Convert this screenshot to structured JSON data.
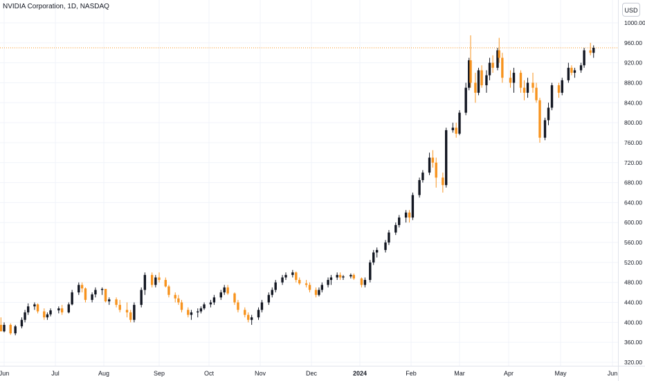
{
  "header": {
    "title": "NVIDIA Corporation, 1D, NASDAQ"
  },
  "currency_button": {
    "label": "USD"
  },
  "colors": {
    "up": "#131722",
    "down": "#f7931e",
    "grid": "#f0f3fa",
    "axis_text": "#131722",
    "price_line": "#f7931e"
  },
  "chart_data": {
    "type": "candlestick",
    "title": "NVIDIA Corporation, 1D, NASDAQ",
    "currency": "USD",
    "ylim": [
      320,
      1000
    ],
    "y_ticks": [
      320,
      360,
      400,
      440,
      480,
      520,
      560,
      600,
      640,
      680,
      720,
      760,
      800,
      840,
      880,
      920,
      960,
      1000
    ],
    "y_tick_labels": [
      "320.00",
      "360.00",
      "400.00",
      "440.00",
      "480.00",
      "520.00",
      "560.00",
      "600.00",
      "640.00",
      "680.00",
      "720.00",
      "760.00",
      "800.00",
      "840.00",
      "880.00",
      "920.00",
      "960.00",
      "1000.00"
    ],
    "x_ticks": [
      {
        "label": "Jun",
        "date": "2023-06-01"
      },
      {
        "label": "Jul",
        "date": "2023-07-03"
      },
      {
        "label": "Aug",
        "date": "2023-08-01"
      },
      {
        "label": "Sep",
        "date": "2023-09-01"
      },
      {
        "label": "Oct",
        "date": "2023-10-02"
      },
      {
        "label": "Nov",
        "date": "2023-11-01"
      },
      {
        "label": "Dec",
        "date": "2023-12-01"
      },
      {
        "label": "2024",
        "date": "2024-01-02"
      },
      {
        "label": "Feb",
        "date": "2024-02-01"
      },
      {
        "label": "Mar",
        "date": "2024-03-01"
      },
      {
        "label": "Apr",
        "date": "2024-04-01"
      },
      {
        "label": "May",
        "date": "2024-05-01"
      },
      {
        "label": "Jun",
        "date": "2024-06-03"
      }
    ],
    "grid": true,
    "last_price_line": 950,
    "bars": [
      [
        "2023-05-26",
        400,
        412,
        392,
        395
      ],
      [
        "2023-05-30",
        395,
        410,
        385,
        382
      ],
      [
        "2023-06-01",
        382,
        400,
        380,
        395
      ],
      [
        "2023-06-05",
        395,
        398,
        375,
        378
      ],
      [
        "2023-06-08",
        378,
        395,
        374,
        392
      ],
      [
        "2023-06-12",
        392,
        410,
        388,
        405
      ],
      [
        "2023-06-14",
        405,
        425,
        400,
        420
      ],
      [
        "2023-06-16",
        420,
        438,
        415,
        432
      ],
      [
        "2023-06-20",
        432,
        440,
        425,
        436
      ],
      [
        "2023-06-22",
        436,
        438,
        418,
        422
      ],
      [
        "2023-06-26",
        422,
        428,
        405,
        410
      ],
      [
        "2023-06-28",
        410,
        420,
        405,
        416
      ],
      [
        "2023-06-30",
        416,
        428,
        412,
        424
      ],
      [
        "2023-07-05",
        424,
        432,
        418,
        428
      ],
      [
        "2023-07-07",
        428,
        435,
        415,
        420
      ],
      [
        "2023-07-11",
        420,
        440,
        418,
        436
      ],
      [
        "2023-07-13",
        436,
        465,
        434,
        460
      ],
      [
        "2023-07-17",
        460,
        480,
        455,
        475
      ],
      [
        "2023-07-19",
        475,
        480,
        460,
        468
      ],
      [
        "2023-07-21",
        468,
        470,
        440,
        445
      ],
      [
        "2023-07-25",
        445,
        460,
        440,
        456
      ],
      [
        "2023-07-27",
        456,
        470,
        450,
        465
      ],
      [
        "2023-07-31",
        465,
        470,
        455,
        467
      ],
      [
        "2023-08-02",
        467,
        465,
        440,
        442
      ],
      [
        "2023-08-04",
        442,
        450,
        435,
        446
      ],
      [
        "2023-08-08",
        446,
        450,
        430,
        435
      ],
      [
        "2023-08-10",
        435,
        445,
        420,
        425
      ],
      [
        "2023-08-14",
        425,
        440,
        410,
        420
      ],
      [
        "2023-08-16",
        420,
        425,
        400,
        405
      ],
      [
        "2023-08-18",
        405,
        440,
        400,
        435
      ],
      [
        "2023-08-22",
        435,
        470,
        430,
        465
      ],
      [
        "2023-08-24",
        465,
        500,
        455,
        495
      ],
      [
        "2023-08-28",
        495,
        500,
        470,
        475
      ],
      [
        "2023-08-30",
        475,
        495,
        470,
        490
      ],
      [
        "2023-09-01",
        490,
        500,
        480,
        485
      ],
      [
        "2023-09-05",
        485,
        490,
        470,
        472
      ],
      [
        "2023-09-07",
        472,
        475,
        450,
        455
      ],
      [
        "2023-09-11",
        455,
        460,
        440,
        448
      ],
      [
        "2023-09-13",
        448,
        455,
        435,
        440
      ],
      [
        "2023-09-15",
        440,
        445,
        420,
        425
      ],
      [
        "2023-09-19",
        425,
        430,
        410,
        415
      ],
      [
        "2023-09-21",
        415,
        425,
        405,
        420
      ],
      [
        "2023-09-25",
        420,
        428,
        410,
        422
      ],
      [
        "2023-09-27",
        422,
        432,
        418,
        428
      ],
      [
        "2023-09-29",
        428,
        440,
        425,
        436
      ],
      [
        "2023-10-03",
        436,
        445,
        430,
        440
      ],
      [
        "2023-10-05",
        440,
        455,
        435,
        450
      ],
      [
        "2023-10-09",
        450,
        465,
        445,
        460
      ],
      [
        "2023-10-11",
        460,
        475,
        455,
        470
      ],
      [
        "2023-10-13",
        470,
        475,
        455,
        458
      ],
      [
        "2023-10-17",
        458,
        460,
        435,
        440
      ],
      [
        "2023-10-19",
        440,
        445,
        420,
        425
      ],
      [
        "2023-10-23",
        425,
        430,
        410,
        415
      ],
      [
        "2023-10-25",
        415,
        420,
        400,
        405
      ],
      [
        "2023-10-27",
        405,
        415,
        395,
        410
      ],
      [
        "2023-10-31",
        410,
        430,
        405,
        425
      ],
      [
        "2023-11-02",
        425,
        445,
        420,
        440
      ],
      [
        "2023-11-06",
        440,
        460,
        435,
        455
      ],
      [
        "2023-11-08",
        455,
        470,
        450,
        465
      ],
      [
        "2023-11-10",
        465,
        485,
        460,
        480
      ],
      [
        "2023-11-14",
        480,
        495,
        475,
        490
      ],
      [
        "2023-11-16",
        490,
        500,
        485,
        495
      ],
      [
        "2023-11-20",
        495,
        505,
        490,
        500
      ],
      [
        "2023-11-22",
        500,
        502,
        480,
        485
      ],
      [
        "2023-11-24",
        485,
        490,
        475,
        478
      ],
      [
        "2023-11-28",
        478,
        485,
        470,
        475
      ],
      [
        "2023-11-30",
        475,
        480,
        460,
        465
      ],
      [
        "2023-12-04",
        465,
        470,
        450,
        455
      ],
      [
        "2023-12-06",
        455,
        470,
        452,
        465
      ],
      [
        "2023-12-08",
        465,
        480,
        460,
        475
      ],
      [
        "2023-12-12",
        475,
        490,
        470,
        485
      ],
      [
        "2023-12-14",
        485,
        495,
        475,
        490
      ],
      [
        "2023-12-18",
        490,
        500,
        485,
        495
      ],
      [
        "2023-12-20",
        495,
        500,
        485,
        490
      ],
      [
        "2023-12-22",
        490,
        495,
        485,
        492
      ],
      [
        "2023-12-27",
        492,
        498,
        488,
        495
      ],
      [
        "2023-12-29",
        495,
        498,
        485,
        488
      ],
      [
        "2024-01-03",
        488,
        490,
        470,
        475
      ],
      [
        "2024-01-05",
        475,
        490,
        470,
        485
      ],
      [
        "2024-01-08",
        485,
        525,
        480,
        520
      ],
      [
        "2024-01-10",
        520,
        545,
        515,
        540
      ],
      [
        "2024-01-12",
        540,
        550,
        530,
        545
      ],
      [
        "2024-01-17",
        545,
        565,
        540,
        560
      ],
      [
        "2024-01-19",
        560,
        585,
        555,
        580
      ],
      [
        "2024-01-23",
        580,
        600,
        575,
        595
      ],
      [
        "2024-01-25",
        595,
        615,
        590,
        610
      ],
      [
        "2024-01-29",
        610,
        625,
        600,
        620
      ],
      [
        "2024-01-31",
        620,
        625,
        600,
        610
      ],
      [
        "2024-02-02",
        610,
        660,
        605,
        655
      ],
      [
        "2024-02-06",
        655,
        690,
        650,
        685
      ],
      [
        "2024-02-08",
        685,
        705,
        680,
        700
      ],
      [
        "2024-02-12",
        700,
        740,
        695,
        730
      ],
      [
        "2024-02-14",
        730,
        745,
        710,
        720
      ],
      [
        "2024-02-16",
        720,
        730,
        670,
        690
      ],
      [
        "2024-02-20",
        690,
        700,
        660,
        675
      ],
      [
        "2024-02-22",
        675,
        790,
        670,
        785
      ],
      [
        "2024-02-26",
        785,
        800,
        780,
        790
      ],
      [
        "2024-02-28",
        790,
        800,
        770,
        778
      ],
      [
        "2024-03-01",
        778,
        825,
        775,
        820
      ],
      [
        "2024-03-05",
        820,
        880,
        815,
        870
      ],
      [
        "2024-03-07",
        870,
        930,
        865,
        925
      ],
      [
        "2024-03-08",
        925,
        975,
        870,
        880
      ],
      [
        "2024-03-11",
        880,
        900,
        840,
        860
      ],
      [
        "2024-03-13",
        860,
        910,
        855,
        905
      ],
      [
        "2024-03-15",
        905,
        915,
        870,
        875
      ],
      [
        "2024-03-18",
        875,
        905,
        860,
        895
      ],
      [
        "2024-03-20",
        895,
        930,
        885,
        920
      ],
      [
        "2024-03-22",
        920,
        935,
        900,
        910
      ],
      [
        "2024-03-25",
        910,
        950,
        905,
        945
      ],
      [
        "2024-03-26",
        945,
        970,
        920,
        930
      ],
      [
        "2024-03-28",
        930,
        940,
        880,
        890
      ],
      [
        "2024-04-02",
        890,
        905,
        870,
        880
      ],
      [
        "2024-04-04",
        880,
        910,
        860,
        900
      ],
      [
        "2024-04-08",
        900,
        905,
        860,
        870
      ],
      [
        "2024-04-10",
        870,
        885,
        845,
        860
      ],
      [
        "2024-04-12",
        860,
        890,
        850,
        880
      ],
      [
        "2024-04-15",
        880,
        900,
        860,
        870
      ],
      [
        "2024-04-17",
        870,
        880,
        840,
        845
      ],
      [
        "2024-04-19",
        845,
        850,
        760,
        770
      ],
      [
        "2024-04-22",
        770,
        810,
        765,
        805
      ],
      [
        "2024-04-24",
        805,
        840,
        795,
        830
      ],
      [
        "2024-04-26",
        830,
        880,
        825,
        875
      ],
      [
        "2024-04-30",
        875,
        880,
        850,
        860
      ],
      [
        "2024-05-02",
        860,
        890,
        855,
        885
      ],
      [
        "2024-05-06",
        885,
        920,
        880,
        910
      ],
      [
        "2024-05-08",
        910,
        915,
        895,
        900
      ],
      [
        "2024-05-10",
        900,
        910,
        890,
        905
      ],
      [
        "2024-05-14",
        905,
        920,
        900,
        915
      ],
      [
        "2024-05-16",
        915,
        950,
        910,
        945
      ],
      [
        "2024-05-20",
        945,
        960,
        935,
        940
      ],
      [
        "2024-05-22",
        940,
        955,
        930,
        950
      ]
    ]
  }
}
